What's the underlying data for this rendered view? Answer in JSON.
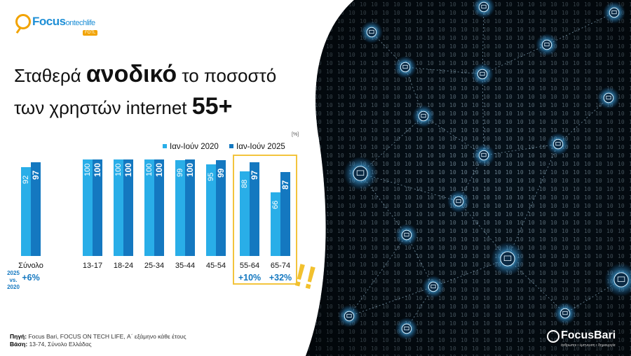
{
  "logo": {
    "brand": "Focus",
    "brand_sub": "ontechlife",
    "tag": "FOTL"
  },
  "title": {
    "line1": {
      "a": "Σταθερά ",
      "b": "ανοδικό",
      "c": " το ποσοστό"
    },
    "line2": {
      "a": "των χρηστών internet ",
      "b": "55+"
    }
  },
  "unit_label": "[%]",
  "comparison_label": {
    "line1": "2025",
    "line2": "vs.",
    "line3": "2020"
  },
  "chart_data": {
    "type": "bar",
    "categories": [
      "Σύνολο",
      "13-17",
      "18-24",
      "25-34",
      "35-44",
      "45-54",
      "55-64",
      "65-74"
    ],
    "series": [
      {
        "name": "Ιαν-Ιούν 2020",
        "values": [
          92,
          100,
          100,
          100,
          99,
          95,
          88,
          66
        ],
        "color": "#29aee8"
      },
      {
        "name": "Ιαν-Ιούν 2025",
        "values": [
          97,
          100,
          100,
          100,
          100,
          99,
          97,
          87
        ],
        "color": "#1478c0"
      }
    ],
    "growth": [
      {
        "category": "Σύνολο",
        "label": "+6%"
      },
      {
        "category": "55-64",
        "label": "+10%"
      },
      {
        "category": "65-74",
        "label": "+32%"
      }
    ],
    "ylim": [
      0,
      100
    ],
    "legend_position": "top",
    "highlight_categories": [
      "55-64",
      "65-74"
    ]
  },
  "emphasis": "!!",
  "source": {
    "label1": "Πηγή:",
    "text1": " Focus Bari, FOCUS ON TECH LIFE, Α΄ εξάμηνο κάθε έτους",
    "label2": "Βάση:",
    "text2": " 13-74, Σύνολο Ελλάδας"
  },
  "corner_logo": {
    "name": "FocusBari",
    "tagline": "άνθρωποι • έμπνευση • δημιουργία"
  }
}
